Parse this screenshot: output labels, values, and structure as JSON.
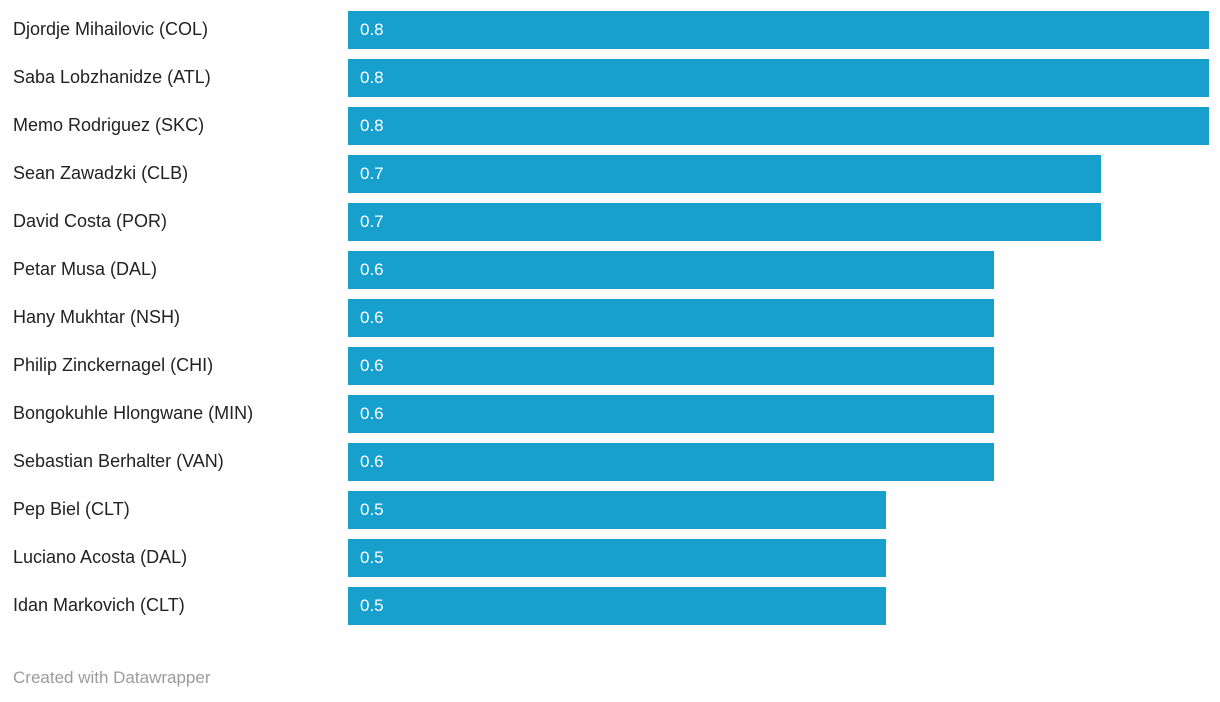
{
  "chart_data": {
    "type": "bar",
    "orientation": "horizontal",
    "title": "",
    "xlabel": "",
    "ylabel": "",
    "xlim": [
      0,
      0.8
    ],
    "grid": false,
    "legend": false,
    "bar_color": "#18a0cd",
    "value_label_color": "#ffffff",
    "category_label_color": "#222222",
    "categories": [
      "Djordje Mihailovic (COL)",
      "Saba Lobzhanidze (ATL)",
      "Memo Rodriguez (SKC)",
      "Sean Zawadzki (CLB)",
      "David Costa (POR)",
      "Petar Musa (DAL)",
      "Hany Mukhtar (NSH)",
      "Philip Zinckernagel (CHI)",
      "Bongokuhle Hlongwane (MIN)",
      "Sebastian Berhalter (VAN)",
      "Pep Biel (CLT)",
      "Luciano Acosta (DAL)",
      "Idan Markovich (CLT)"
    ],
    "values": [
      0.8,
      0.8,
      0.8,
      0.7,
      0.7,
      0.6,
      0.6,
      0.6,
      0.6,
      0.6,
      0.5,
      0.5,
      0.5
    ],
    "value_labels": [
      "0.8",
      "0.8",
      "0.8",
      "0.7",
      "0.7",
      "0.6",
      "0.6",
      "0.6",
      "0.6",
      "0.6",
      "0.5",
      "0.5",
      "0.5"
    ]
  },
  "footer": {
    "attribution": "Created with Datawrapper"
  }
}
